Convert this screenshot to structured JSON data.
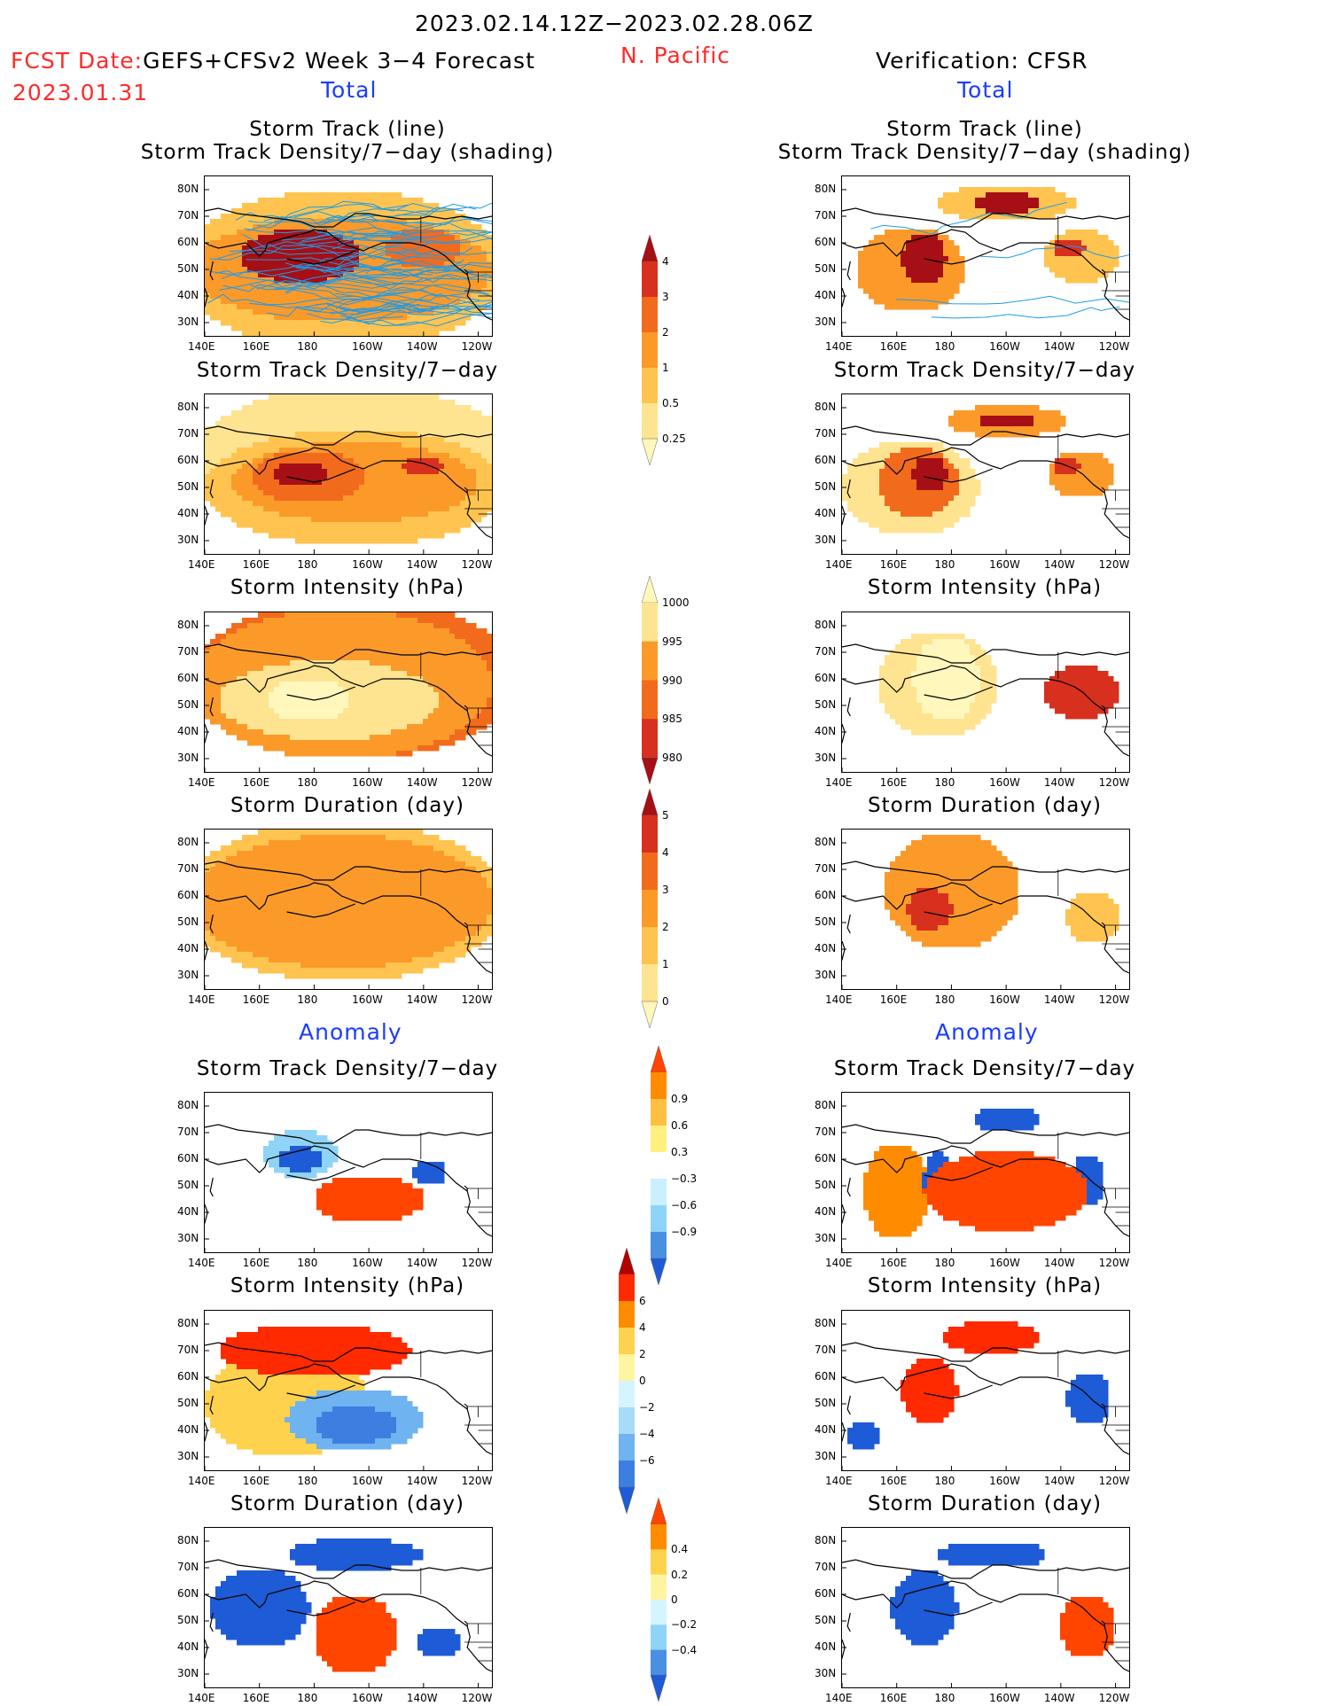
{
  "header": {
    "date_range": "2023.02.14.12Z−2023.02.28.06Z",
    "fcst_date_label": "FCST Date:",
    "model": "GEFS+CFSv2 Week 3−4 Forecast",
    "fcst_date": "2023.01.31",
    "region": "N. Pacific",
    "verification": "Verification: CFSR"
  },
  "sections": {
    "total": "Total",
    "anomaly": "Anomaly"
  },
  "axes": {
    "x_ticks": [
      "140E",
      "160E",
      "180",
      "160W",
      "140W",
      "120W"
    ],
    "y_ticks": [
      "80N",
      "70N",
      "60N",
      "50N",
      "40N",
      "30N"
    ]
  },
  "panels": {
    "fcst_track": {
      "title1": "Storm Track (line)",
      "title2": "Storm Track Density/7−day (shading)"
    },
    "obs_track": {
      "title1": "Storm Track (line)",
      "title2": "Storm Track Density/7−day (shading)"
    },
    "fcst_density": {
      "title": "Storm Track Density/7−day"
    },
    "obs_density": {
      "title": "Storm Track Density/7−day"
    },
    "fcst_intensity": {
      "title": "Storm Intensity (hPa)"
    },
    "obs_intensity": {
      "title": "Storm Intensity (hPa)"
    },
    "fcst_duration": {
      "title": "Storm Duration (day)"
    },
    "obs_duration": {
      "title": "Storm Duration (day)"
    },
    "fcst_density_anom": {
      "title": "Storm Track Density/7−day"
    },
    "obs_density_anom": {
      "title": "Storm Track Density/7−day"
    },
    "fcst_intensity_anom": {
      "title": "Storm Intensity (hPa)"
    },
    "obs_intensity_anom": {
      "title": "Storm Intensity (hPa)"
    },
    "fcst_duration_anom": {
      "title": "Storm Duration (day)"
    },
    "obs_duration_anom": {
      "title": "Storm Duration (day)"
    }
  },
  "chart_data": {
    "type": "heatmap",
    "map_extent": {
      "lon": [
        140,
        245
      ],
      "lat": [
        25,
        85
      ]
    },
    "colorbars": [
      {
        "name": "density",
        "labels": [
          "4",
          "3",
          "2",
          "1",
          "0.5",
          "0.25"
        ],
        "colors": [
          "#a50f15",
          "#d7301f",
          "#f26b1d",
          "#fb9a29",
          "#fec44f",
          "#fee391",
          "#fff7bc"
        ]
      },
      {
        "name": "intensity",
        "labels": [
          "1000",
          "995",
          "990",
          "985",
          "980"
        ],
        "colors": [
          "#fff7bc",
          "#fee391",
          "#fb9a29",
          "#f26b1d",
          "#d7301f",
          "#a50f15"
        ]
      },
      {
        "name": "duration",
        "labels": [
          "5",
          "4",
          "3",
          "2",
          "1",
          "0"
        ],
        "colors": [
          "#a50f15",
          "#d7301f",
          "#f26b1d",
          "#fb9a29",
          "#fec44f",
          "#fee391",
          "#fff7bc"
        ]
      },
      {
        "name": "density_anom",
        "labels": [
          "0.9",
          "0.6",
          "0.3",
          "−0.3",
          "−0.6",
          "−0.9"
        ],
        "colors": [
          "#ff4500",
          "#ff8c00",
          "#ffbf40",
          "#fff080",
          "#ffffff",
          "#c9f0ff",
          "#8fd3f7",
          "#4a90e2",
          "#1e5bd6"
        ]
      },
      {
        "name": "intensity_anom",
        "labels": [
          "6",
          "4",
          "2",
          "0",
          "−2",
          "−4",
          "−6"
        ],
        "colors": [
          "#b30000",
          "#ff2a00",
          "#ff8c00",
          "#ffd24d",
          "#fff5a0",
          "#d4f4ff",
          "#a6dcfa",
          "#6fb3f0",
          "#3d7fe0",
          "#1e5bd6"
        ]
      },
      {
        "name": "duration_anom",
        "labels": [
          "0.4",
          "0.2",
          "0",
          "−0.2",
          "−0.4"
        ],
        "colors": [
          "#ff4500",
          "#ff8c00",
          "#ffd24d",
          "#fff5a0",
          "#d4f4ff",
          "#8fd3f7",
          "#4a90e2",
          "#1e5bd6"
        ]
      }
    ],
    "fields": [
      {
        "panel": "fcst_track",
        "scale": "density",
        "blobs": [
          {
            "lon": 175,
            "lat": 55,
            "rx": 22,
            "ry": 10,
            "v": 6
          },
          {
            "lon": 220,
            "lat": 58,
            "rx": 14,
            "ry": 7,
            "v": 4
          },
          {
            "lon": 190,
            "lat": 50,
            "rx": 55,
            "ry": 20,
            "v": 3
          },
          {
            "lon": 190,
            "lat": 50,
            "rx": 60,
            "ry": 30,
            "v": 2
          }
        ]
      },
      {
        "panel": "obs_track",
        "scale": "density",
        "blobs": [
          {
            "lon": 170,
            "lat": 54,
            "rx": 8,
            "ry": 10,
            "v": 6
          },
          {
            "lon": 200,
            "lat": 75,
            "rx": 12,
            "ry": 4,
            "v": 6
          },
          {
            "lon": 223,
            "lat": 58,
            "rx": 6,
            "ry": 4,
            "v": 5
          },
          {
            "lon": 165,
            "lat": 50,
            "rx": 20,
            "ry": 16,
            "v": 3
          },
          {
            "lon": 200,
            "lat": 75,
            "rx": 25,
            "ry": 7,
            "v": 2
          },
          {
            "lon": 228,
            "lat": 55,
            "rx": 14,
            "ry": 10,
            "v": 2
          }
        ]
      },
      {
        "panel": "fcst_density",
        "scale": "density",
        "blobs": [
          {
            "lon": 175,
            "lat": 55,
            "rx": 10,
            "ry": 5,
            "v": 6
          },
          {
            "lon": 220,
            "lat": 58,
            "rx": 8,
            "ry": 3,
            "v": 5
          },
          {
            "lon": 178,
            "lat": 54,
            "rx": 20,
            "ry": 10,
            "v": 4
          },
          {
            "lon": 195,
            "lat": 52,
            "rx": 45,
            "ry": 15,
            "v": 3
          },
          {
            "lon": 195,
            "lat": 50,
            "rx": 55,
            "ry": 22,
            "v": 2
          },
          {
            "lon": 195,
            "lat": 60,
            "rx": 60,
            "ry": 28,
            "v": 1
          }
        ]
      },
      {
        "panel": "obs_density",
        "scale": "density",
        "blobs": [
          {
            "lon": 172,
            "lat": 55,
            "rx": 6,
            "ry": 7,
            "v": 6
          },
          {
            "lon": 200,
            "lat": 75,
            "rx": 10,
            "ry": 3,
            "v": 6
          },
          {
            "lon": 222,
            "lat": 58,
            "rx": 5,
            "ry": 3,
            "v": 5
          },
          {
            "lon": 168,
            "lat": 52,
            "rx": 15,
            "ry": 13,
            "v": 4
          },
          {
            "lon": 200,
            "lat": 75,
            "rx": 22,
            "ry": 6,
            "v": 3
          },
          {
            "lon": 228,
            "lat": 55,
            "rx": 12,
            "ry": 9,
            "v": 3
          },
          {
            "lon": 165,
            "lat": 50,
            "rx": 25,
            "ry": 18,
            "v": 1
          }
        ]
      },
      {
        "panel": "fcst_intensity",
        "scale": "intensity",
        "blobs": [
          {
            "lon": 178,
            "lat": 52,
            "rx": 15,
            "ry": 8,
            "v": 5
          },
          {
            "lon": 185,
            "lat": 52,
            "rx": 40,
            "ry": 15,
            "v": 4
          },
          {
            "lon": 190,
            "lat": 58,
            "rx": 55,
            "ry": 28,
            "v": 3
          },
          {
            "lon": 195,
            "lat": 60,
            "rx": 60,
            "ry": 30,
            "v": 2
          }
        ]
      },
      {
        "panel": "obs_intensity",
        "scale": "intensity",
        "blobs": [
          {
            "lon": 178,
            "lat": 60,
            "rx": 12,
            "ry": 16,
            "v": 5
          },
          {
            "lon": 175,
            "lat": 58,
            "rx": 22,
            "ry": 20,
            "v": 4
          },
          {
            "lon": 228,
            "lat": 55,
            "rx": 14,
            "ry": 10,
            "v": 1
          }
        ]
      },
      {
        "panel": "fcst_duration",
        "scale": "duration",
        "blobs": [
          {
            "lon": 190,
            "lat": 58,
            "rx": 55,
            "ry": 25,
            "v": 3
          },
          {
            "lon": 190,
            "lat": 58,
            "rx": 60,
            "ry": 30,
            "v": 2
          }
        ]
      },
      {
        "panel": "obs_duration",
        "scale": "duration",
        "blobs": [
          {
            "lon": 172,
            "lat": 55,
            "rx": 8,
            "ry": 8,
            "v": 5
          },
          {
            "lon": 180,
            "lat": 62,
            "rx": 25,
            "ry": 22,
            "v": 3
          },
          {
            "lon": 232,
            "lat": 52,
            "rx": 10,
            "ry": 10,
            "v": 2
          }
        ]
      },
      {
        "panel": "fcst_density_anom",
        "scale": "density_anom",
        "blobs": [
          {
            "lon": 200,
            "lat": 45,
            "rx": 20,
            "ry": 9,
            "v": 0
          },
          {
            "lon": 175,
            "lat": 60,
            "rx": 8,
            "ry": 5,
            "v": 8
          },
          {
            "lon": 222,
            "lat": 55,
            "rx": 6,
            "ry": 5,
            "v": 8
          },
          {
            "lon": 175,
            "lat": 62,
            "rx": 14,
            "ry": 9,
            "v": 6
          }
        ]
      },
      {
        "panel": "obs_density_anom",
        "scale": "density_anom",
        "blobs": [
          {
            "lon": 200,
            "lat": 48,
            "rx": 30,
            "ry": 15,
            "v": 0
          },
          {
            "lon": 200,
            "lat": 75,
            "rx": 12,
            "ry": 5,
            "v": 8
          },
          {
            "lon": 175,
            "lat": 52,
            "rx": 5,
            "ry": 12,
            "v": 8
          },
          {
            "lon": 230,
            "lat": 52,
            "rx": 6,
            "ry": 10,
            "v": 8
          },
          {
            "lon": 160,
            "lat": 48,
            "rx": 12,
            "ry": 18,
            "v": 1
          }
        ]
      },
      {
        "panel": "fcst_intensity_anom",
        "scale": "intensity_anom",
        "blobs": [
          {
            "lon": 195,
            "lat": 42,
            "rx": 15,
            "ry": 7,
            "v": 8
          },
          {
            "lon": 195,
            "lat": 44,
            "rx": 25,
            "ry": 12,
            "v": 7
          },
          {
            "lon": 180,
            "lat": 70,
            "rx": 35,
            "ry": 10,
            "v": 1
          },
          {
            "lon": 170,
            "lat": 50,
            "rx": 30,
            "ry": 20,
            "v": 3
          }
        ]
      },
      {
        "panel": "obs_intensity_anom",
        "scale": "intensity_anom",
        "blobs": [
          {
            "lon": 195,
            "lat": 75,
            "rx": 18,
            "ry": 6,
            "v": 1
          },
          {
            "lon": 230,
            "lat": 52,
            "rx": 8,
            "ry": 10,
            "v": 9
          },
          {
            "lon": 148,
            "lat": 38,
            "rx": 6,
            "ry": 5,
            "v": 9
          },
          {
            "lon": 172,
            "lat": 55,
            "rx": 10,
            "ry": 12,
            "v": 1
          }
        ]
      },
      {
        "panel": "fcst_duration_anom",
        "scale": "duration_anom",
        "blobs": [
          {
            "lon": 195,
            "lat": 45,
            "rx": 15,
            "ry": 15,
            "v": 0
          },
          {
            "lon": 225,
            "lat": 42,
            "rx": 8,
            "ry": 6,
            "v": 7
          },
          {
            "lon": 160,
            "lat": 55,
            "rx": 18,
            "ry": 15,
            "v": 7
          },
          {
            "lon": 195,
            "lat": 75,
            "rx": 25,
            "ry": 6,
            "v": 7
          }
        ]
      },
      {
        "panel": "obs_duration_anom",
        "scale": "duration_anom",
        "blobs": [
          {
            "lon": 170,
            "lat": 55,
            "rx": 12,
            "ry": 14,
            "v": 7
          },
          {
            "lon": 195,
            "lat": 75,
            "rx": 20,
            "ry": 5,
            "v": 7
          },
          {
            "lon": 230,
            "lat": 48,
            "rx": 10,
            "ry": 12,
            "v": 0
          }
        ]
      }
    ]
  }
}
